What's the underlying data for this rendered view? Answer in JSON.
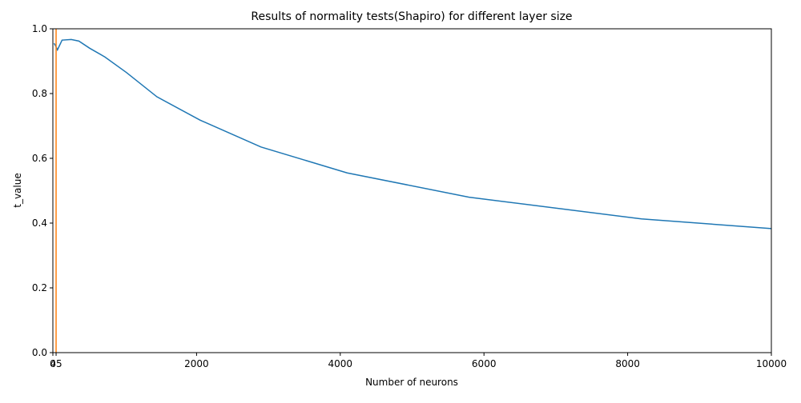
{
  "chart_data": {
    "type": "line",
    "title": "Results of normality tests(Shapiro) for different layer size",
    "xlabel": "Number of neurons",
    "ylabel": "t_value",
    "x": [
      16,
      32,
      64,
      128,
      256,
      362,
      512,
      724,
      1024,
      1448,
      2048,
      2896,
      4096,
      5792,
      8192,
      10000
    ],
    "series": [
      {
        "name": "t_value",
        "color": "#1f77b4",
        "values": [
          0.955,
          0.95,
          0.935,
          0.965,
          0.967,
          0.962,
          0.94,
          0.913,
          0.865,
          0.79,
          0.718,
          0.635,
          0.555,
          0.48,
          0.413,
          0.383
        ]
      }
    ],
    "vline": {
      "x": 45,
      "color": "#ff7f0e"
    },
    "xlim": [
      0,
      10000
    ],
    "xticks": [
      0,
      45,
      2000,
      4000,
      6000,
      8000,
      10000
    ],
    "ylim": [
      0,
      1
    ],
    "yticks": [
      {
        "value": 0,
        "label": "0.0"
      },
      0.2,
      0.4,
      0.6,
      0.8,
      {
        "value": 1,
        "label": "1.0"
      }
    ],
    "grid": false
  }
}
